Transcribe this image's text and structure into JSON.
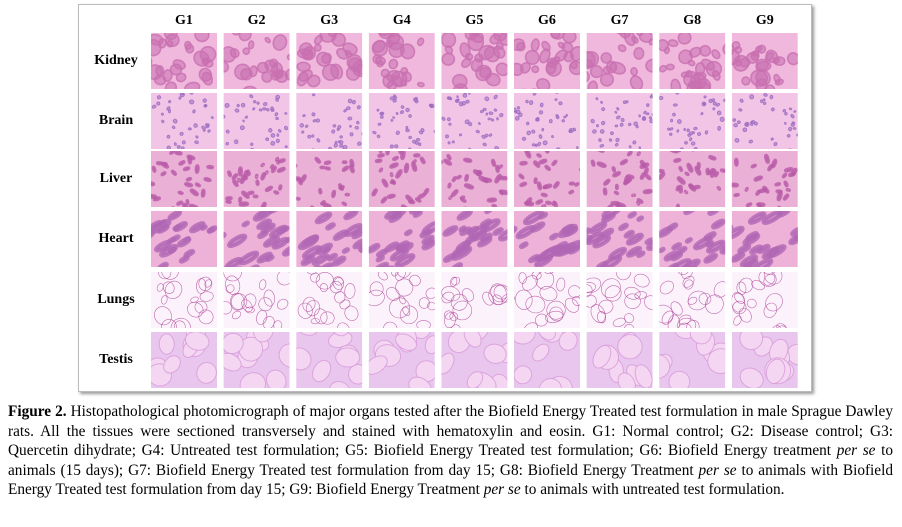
{
  "figure": {
    "columns": [
      "G1",
      "G2",
      "G3",
      "G4",
      "G5",
      "G6",
      "G7",
      "G8",
      "G9"
    ],
    "rows": [
      "Kidney",
      "Brain",
      "Liver",
      "Heart",
      "Lungs",
      "Testis"
    ]
  },
  "caption": {
    "label": "Figure 2.",
    "runs": [
      {
        "text": " Histopathological photomicrograph of major organs tested after the Biofield Energy Treated test formulation in male Sprague Dawley rats. All the tissues were sectioned transversely and stained with hematoxylin and eosin. G1: Normal control; G2: Disease control; G3: Quercetin dihydrate; G4: Untreated test formulation; G5: Biofield Energy Treated test formulation; G6: Biofield Energy treatment ",
        "style": "normal"
      },
      {
        "text": "per se",
        "style": "italic"
      },
      {
        "text": " to animals (15 days); G7: Biofield Energy Treated test formulation from day 15; G8: Biofield Energy Treatment ",
        "style": "normal"
      },
      {
        "text": "per se",
        "style": "italic"
      },
      {
        "text": " to animals with Biofield Energy Treated test formulation from day 15; G9: Biofield Energy Treatment ",
        "style": "normal"
      },
      {
        "text": "per se",
        "style": "italic"
      },
      {
        "text": " to animals with untreated test formulation.",
        "style": "normal"
      }
    ]
  }
}
